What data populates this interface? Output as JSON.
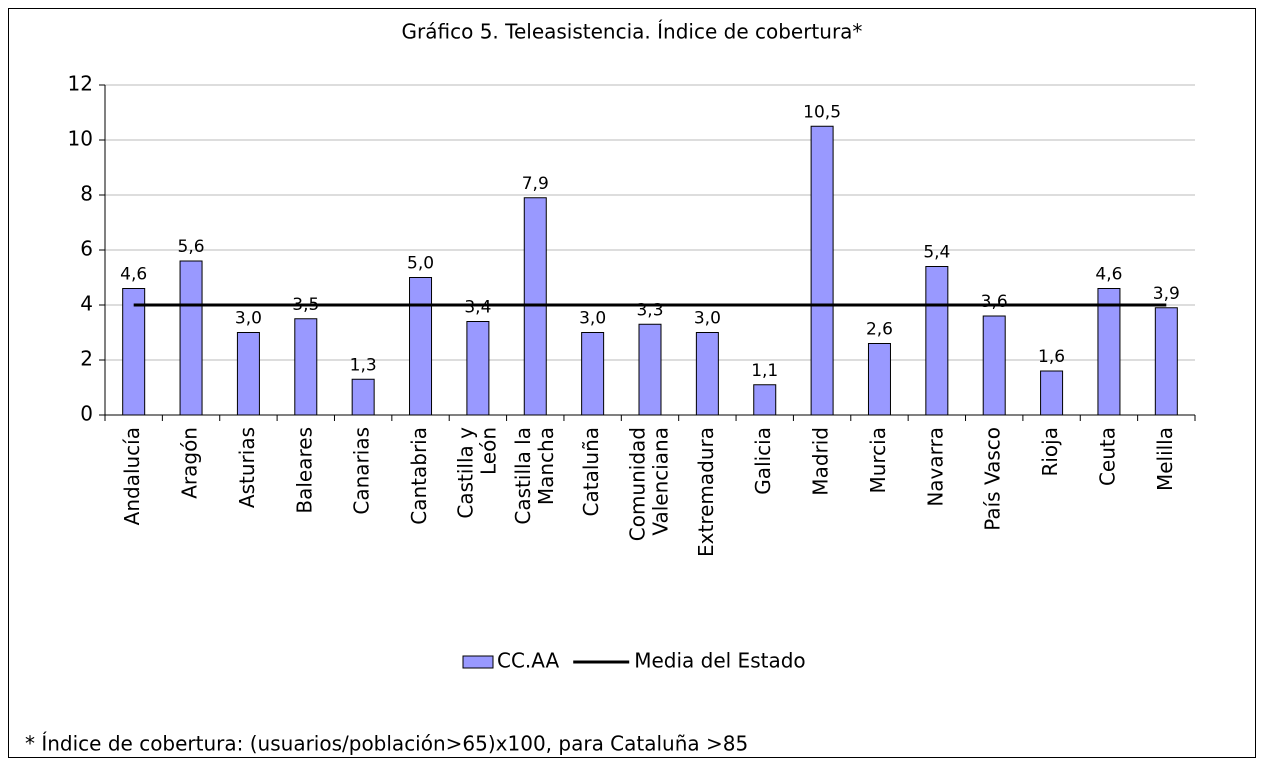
{
  "chart_data": {
    "type": "bar",
    "title": "Gráfico 5. Teleasistencia. Índice de cobertura*",
    "categories": [
      "Andalucía",
      "Aragón",
      "Asturias",
      "Baleares",
      "Canarias",
      "Cantabria",
      "Castilla y\nLeón",
      "Castilla la\nMancha",
      "Cataluña",
      "Comunidad\nValenciana",
      "Extremadura",
      "Galicia",
      "Madrid",
      "Murcia",
      "Navarra",
      "País Vasco",
      "Rioja",
      "Ceuta",
      "Melilla"
    ],
    "series": [
      {
        "name": "CC.AA",
        "type": "bar",
        "color": "#9999ff",
        "values": [
          4.6,
          5.6,
          3.0,
          3.5,
          1.3,
          5.0,
          3.4,
          7.9,
          3.0,
          3.3,
          3.0,
          1.1,
          10.5,
          2.6,
          5.4,
          3.6,
          1.6,
          4.6,
          3.9
        ],
        "value_labels": [
          "4,6",
          "5,6",
          "3,0",
          "3,5",
          "1,3",
          "5,0",
          "3,4",
          "7,9",
          "3,0",
          "3,3",
          "3,0",
          "1,1",
          "10,5",
          "2,6",
          "5,4",
          "3,6",
          "1,6",
          "4,6",
          "3,9"
        ]
      },
      {
        "name": "Media del Estado",
        "type": "line",
        "color": "#000000",
        "values": [
          4,
          4,
          4,
          4,
          4,
          4,
          4,
          4,
          4,
          4,
          4,
          4,
          4,
          4,
          4,
          4,
          4,
          4,
          4
        ]
      }
    ],
    "ylim": [
      0,
      12
    ],
    "yticks": [
      0,
      2,
      4,
      6,
      8,
      10,
      12
    ],
    "grid": true,
    "legend": "bottom",
    "footnote": "* Índice de cobertura: (usuarios/población>65)x100, para Cataluña >85"
  }
}
